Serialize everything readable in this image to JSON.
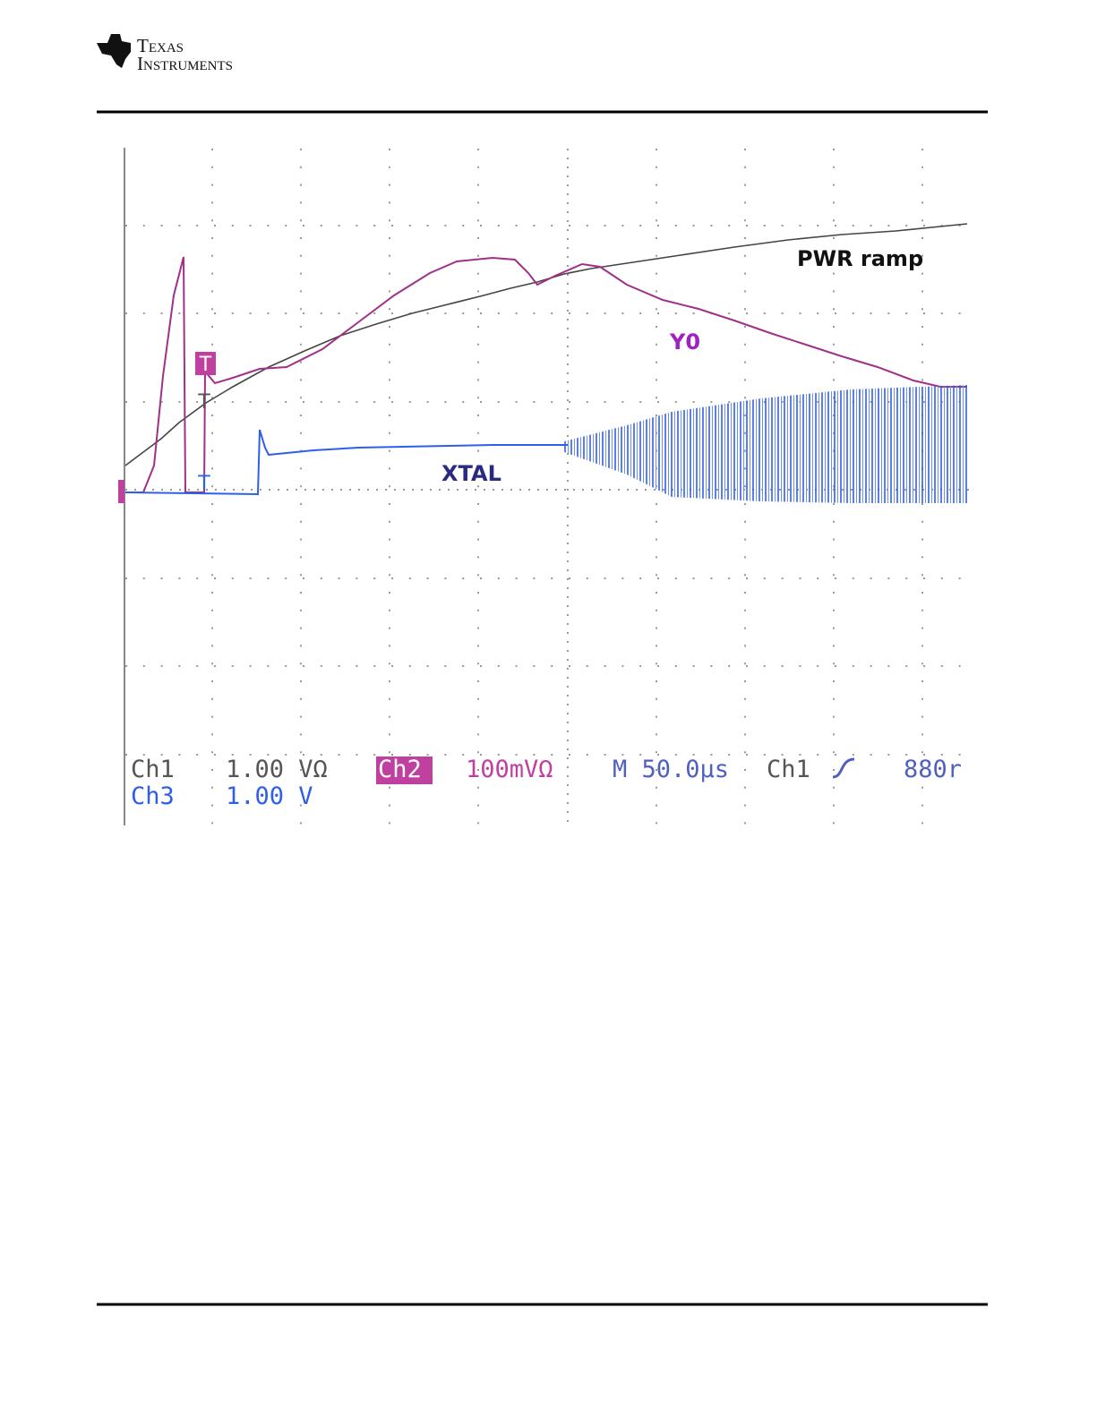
{
  "header": {
    "logo_line1": "Texas",
    "logo_line2": "Instruments"
  },
  "scope": {
    "annotations": {
      "pwr_ramp": "PWR ramp",
      "y0": "Y0",
      "xtal": "XTAL"
    },
    "trigger_markers": {
      "ch2": "T",
      "ch1": "T",
      "ch3": "T"
    },
    "status": {
      "ch1": "Ch1",
      "ch1_scale": "1.00 VΩ",
      "ch2": "Ch2",
      "ch2_scale": "100mVΩ",
      "timebase": "M 50.0µs",
      "trigger_source": "Ch1",
      "trigger_level": "880r",
      "ch3": "Ch3",
      "ch3_scale": "1.00 V"
    }
  }
}
